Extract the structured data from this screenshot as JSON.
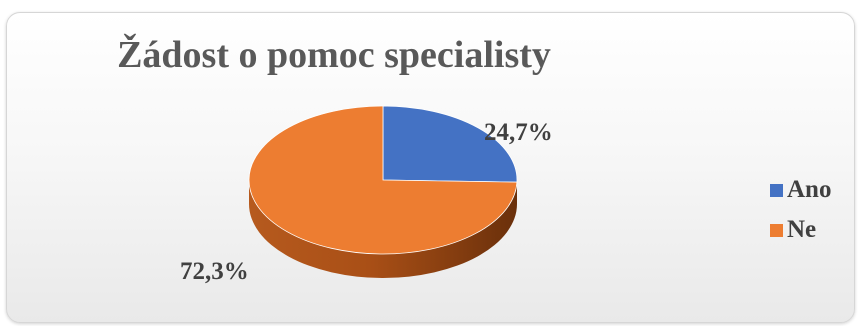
{
  "chart_data": {
    "type": "pie",
    "title": "Žádost o pomoc specialisty",
    "categories": [
      "Ano",
      "Ne"
    ],
    "values": [
      24.7,
      72.3
    ],
    "labels": [
      "24,7%",
      "72,3%"
    ],
    "colors": [
      "#4472c4",
      "#ed7d31"
    ],
    "legend_position": "right",
    "style": "3d"
  }
}
